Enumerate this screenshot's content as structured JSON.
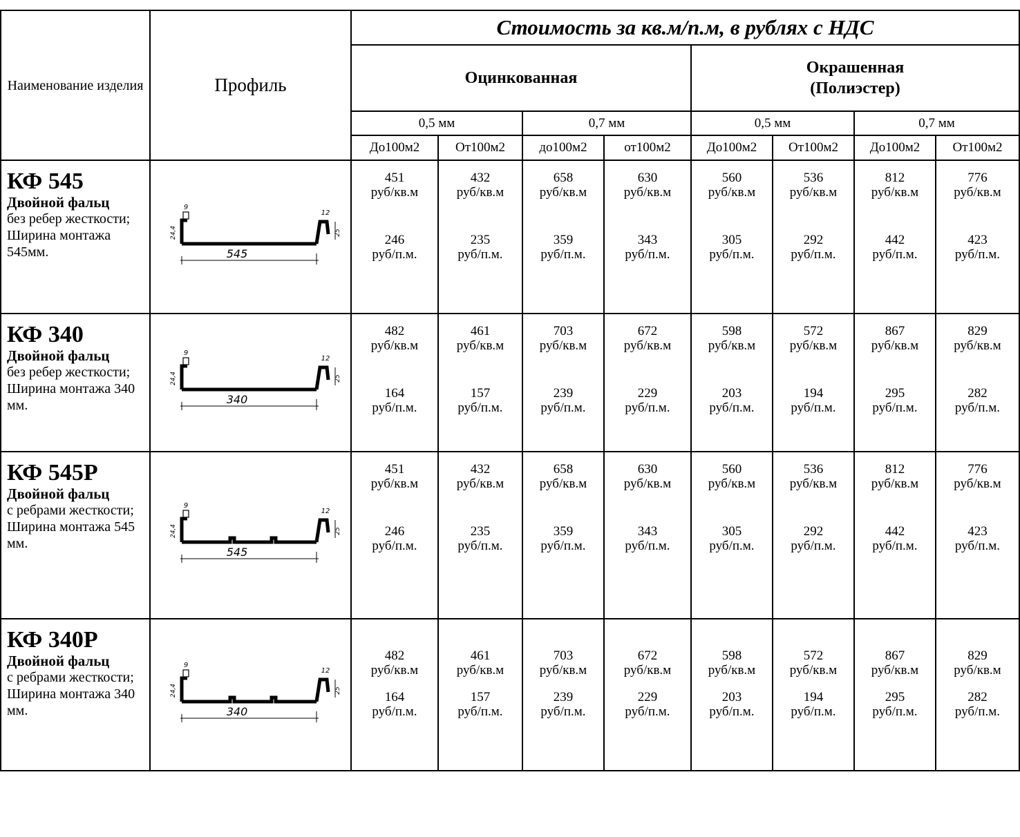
{
  "header": {
    "name_col": "Наименование изделия",
    "profile_col": "Профиль",
    "cost_caption": "Стоимость за кв.м/п.м, в рублях с НДС",
    "group_galv": "Оцинкованная",
    "group_painted": "Окрашенная (Полиэстер)",
    "thickness": [
      "0,5 мм",
      "0,7 мм",
      "0,5 мм",
      "0,7 мм"
    ],
    "qty": [
      "До100м2",
      "От100м2",
      "до100м2",
      "от100м2",
      "До100м2",
      "От100м2",
      "До100м2",
      "От100м2"
    ]
  },
  "unit_sqm": "руб/кв.м",
  "unit_lm": "руб/п.м.",
  "products": [
    {
      "code": "КФ 545",
      "type": "Двойной фальц",
      "desc": "без ребер жесткости; Ширина монтажа 545мм.",
      "drawing": {
        "w": "545",
        "left": "9",
        "right": "12",
        "h": "24,4",
        "hr": "25",
        "ribs": false
      },
      "sqm": [
        "451",
        "432",
        "658",
        "630",
        "560",
        "536",
        "812",
        "776"
      ],
      "lm": [
        "246",
        "235",
        "359",
        "343",
        "305",
        "292",
        "442",
        "423"
      ]
    },
    {
      "code": "КФ 340",
      "type": "Двойной фальц",
      "desc": "без ребер жесткости; Ширина монтажа 340 мм.",
      "drawing": {
        "w": "340",
        "left": "9",
        "right": "12",
        "h": "24,4",
        "hr": "25",
        "ribs": false
      },
      "sqm": [
        "482",
        "461",
        "703",
        "672",
        "598",
        "572",
        "867",
        "829"
      ],
      "lm": [
        "164",
        "157",
        "239",
        "229",
        "203",
        "194",
        "295",
        "282"
      ]
    },
    {
      "code": "КФ 545Р",
      "type": "Двойной фальц",
      "desc": "с ребрами жесткости; Ширина монтажа 545 мм.",
      "drawing": {
        "w": "545",
        "left": "9",
        "right": "12",
        "h": "24,4",
        "hr": "25",
        "ribs": true
      },
      "sqm": [
        "451",
        "432",
        "658",
        "630",
        "560",
        "536",
        "812",
        "776"
      ],
      "lm": [
        "246",
        "235",
        "359",
        "343",
        "305",
        "292",
        "442",
        "423"
      ]
    },
    {
      "code": "КФ 340Р",
      "type": "Двойной фальц",
      "desc": "с ребрами жесткости; Ширина монтажа 340 мм.",
      "drawing": {
        "w": "340",
        "left": "9",
        "right": "12",
        "h": "24,4",
        "hr": "25",
        "ribs": true
      },
      "sqm": [
        "482",
        "461",
        "703",
        "672",
        "598",
        "572",
        "867",
        "829"
      ],
      "lm": [
        "164",
        "157",
        "239",
        "229",
        "203",
        "194",
        "295",
        "282"
      ]
    }
  ]
}
